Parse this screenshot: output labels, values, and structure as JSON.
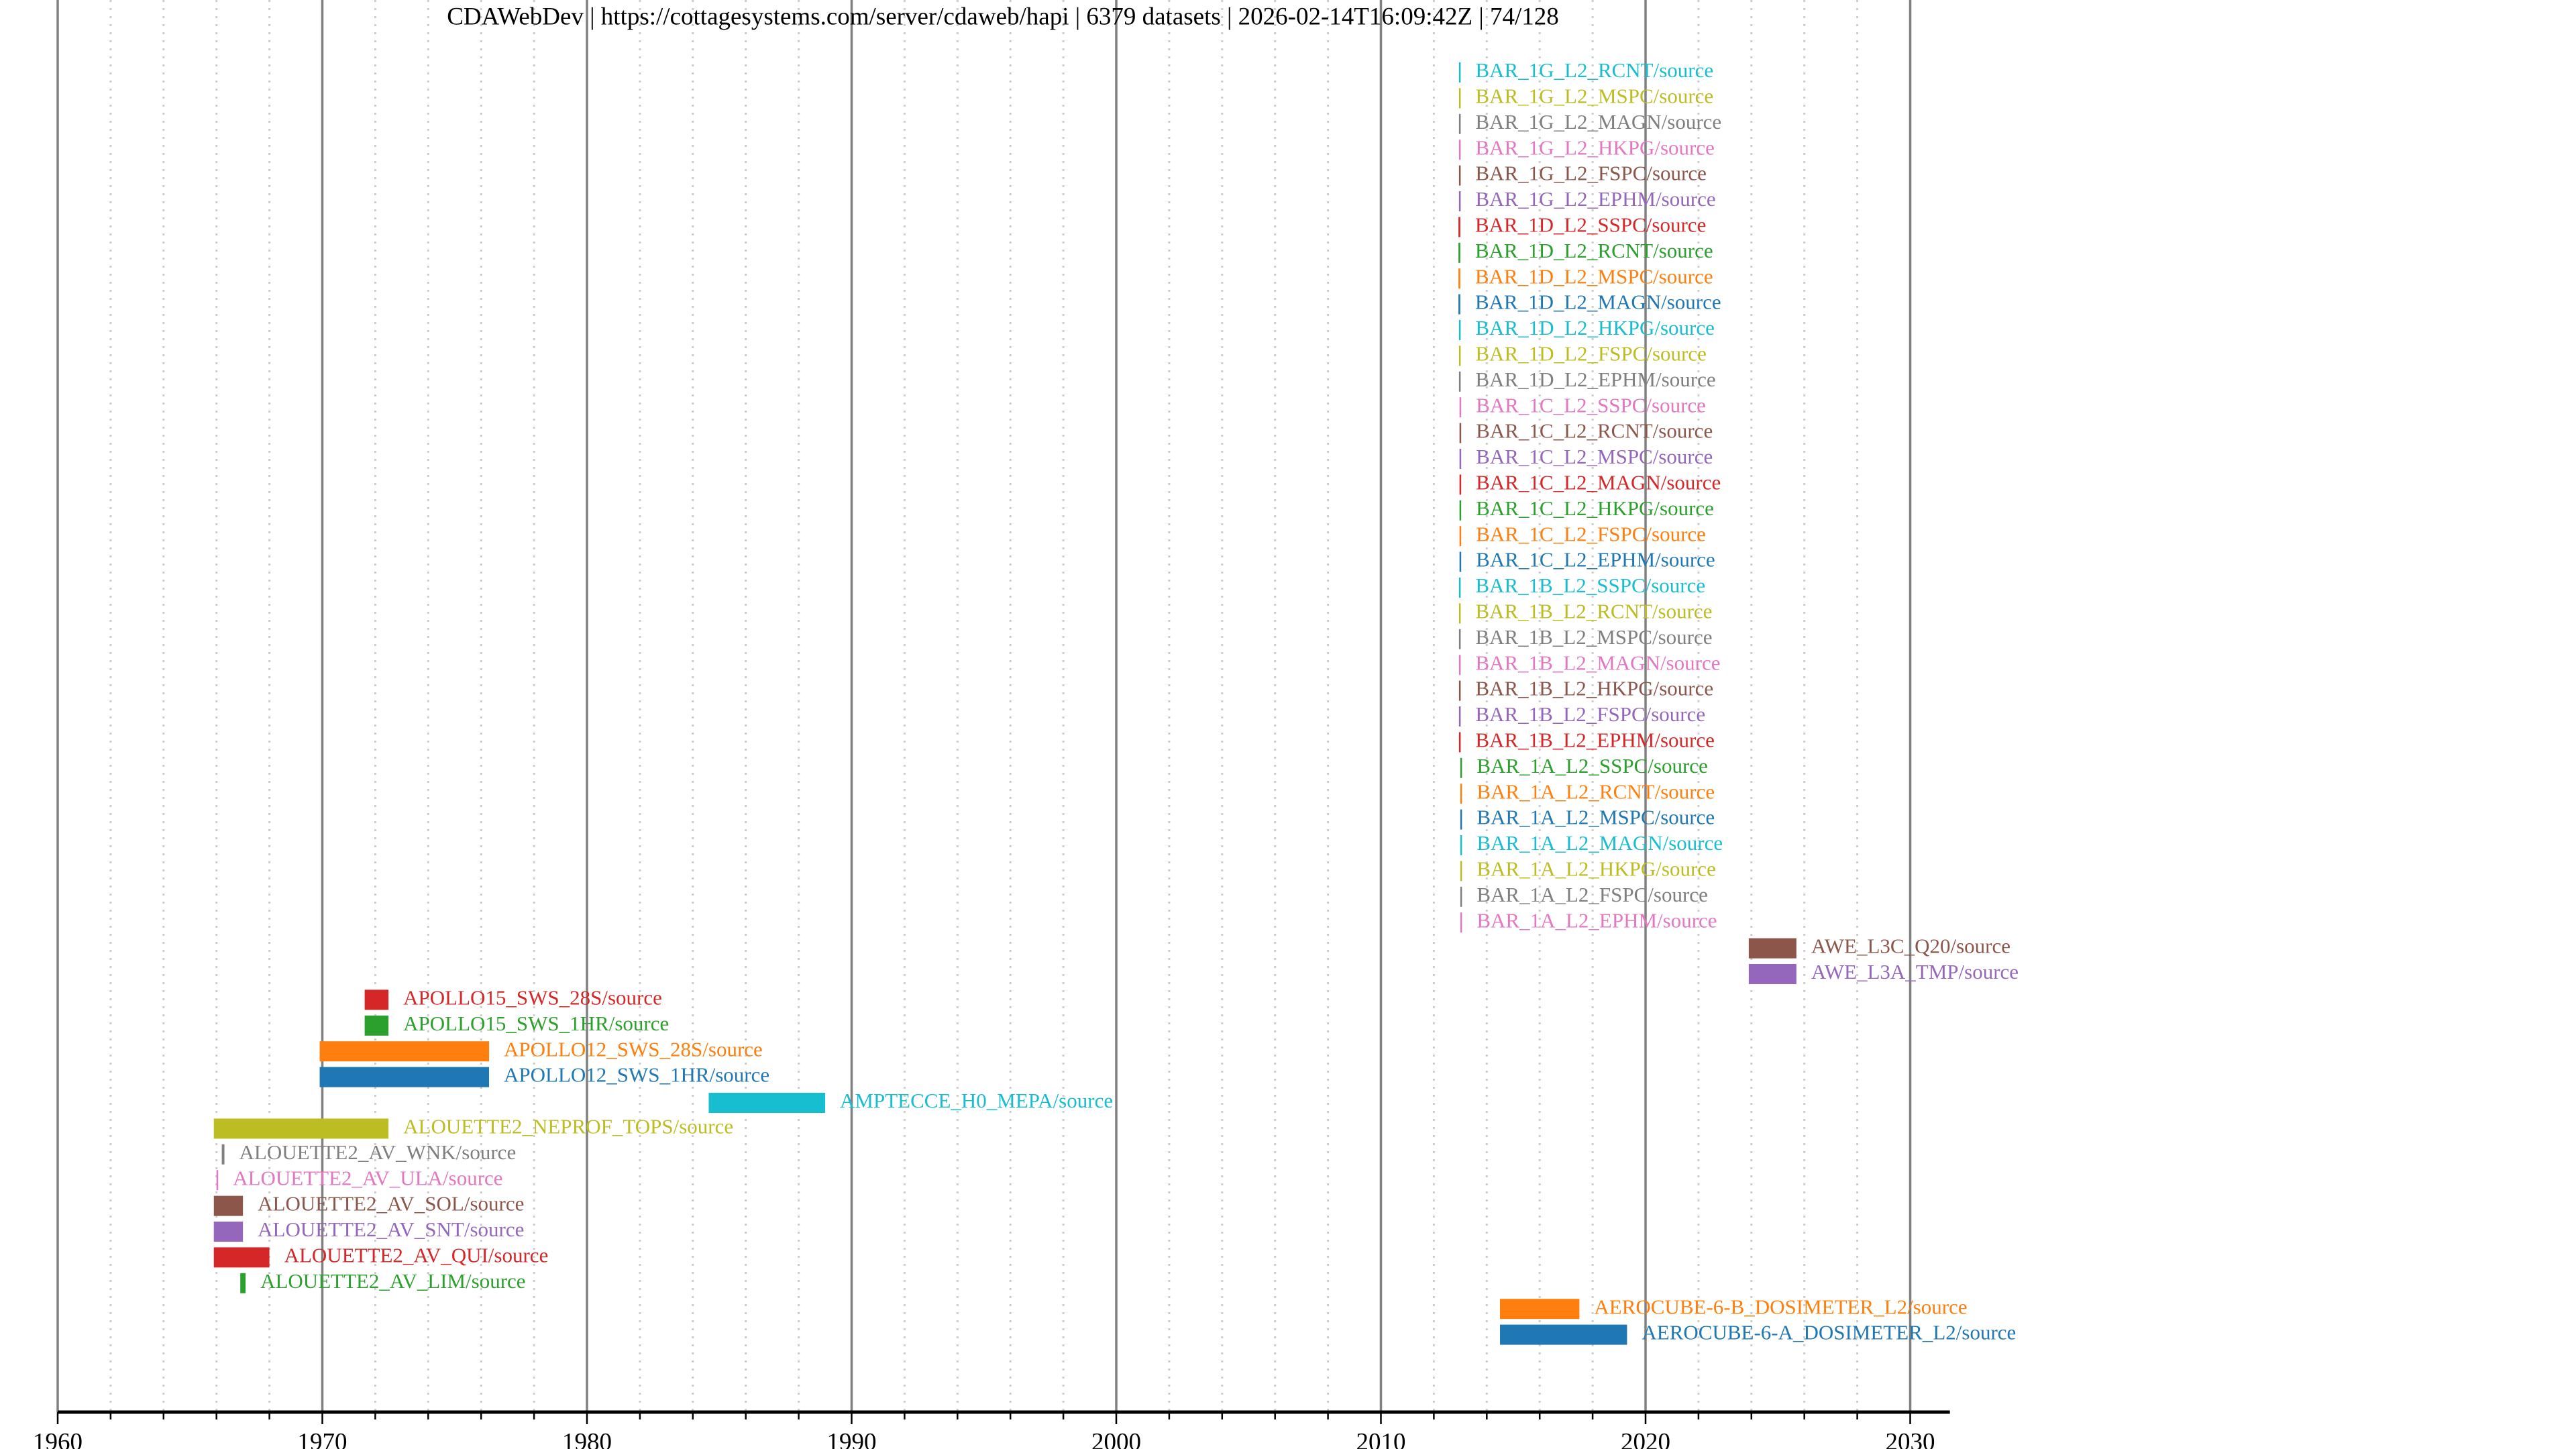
{
  "header": {
    "title_parts": [
      "CDAWebDev",
      "https://cottagesystems.com/server/cdaweb/hapi",
      "6379 datasets",
      "2026-02-14T16:09:42Z",
      "74/128"
    ],
    "separator": " | "
  },
  "chart_data": {
    "type": "timeline",
    "title": "CDAWebDev | https://cottagesystems.com/server/cdaweb/hapi | 6379 datasets | 2026-02-14T16:09:42Z | 74/128",
    "xlabel": "",
    "ylabel": "",
    "xlim": [
      1960,
      2031.5
    ],
    "x_major_ticks": [
      1960,
      1970,
      1980,
      1990,
      2000,
      2010,
      2020,
      2030
    ],
    "x_tick_labels": [
      "1960",
      "1970",
      "1980",
      "1990",
      "2000",
      "2010",
      "2020",
      "2030"
    ],
    "x_minor_step": 2,
    "grid": true,
    "palette": [
      "#1f77b4",
      "#ff7f0e",
      "#2ca02c",
      "#d62728",
      "#9467bd",
      "#8c564b",
      "#e377c2",
      "#7f7f7f",
      "#bcbd22",
      "#17becf"
    ],
    "series": [
      {
        "name": "BAR_1G_L2_RCNT/source",
        "start": 2012.95,
        "end": 2013.0,
        "color": "#17becf"
      },
      {
        "name": "BAR_1G_L2_MSPC/source",
        "start": 2012.95,
        "end": 2013.0,
        "color": "#bcbd22"
      },
      {
        "name": "BAR_1G_L2_MAGN/source",
        "start": 2012.95,
        "end": 2013.0,
        "color": "#7f7f7f"
      },
      {
        "name": "BAR_1G_L2_HKPG/source",
        "start": 2012.95,
        "end": 2013.0,
        "color": "#e377c2"
      },
      {
        "name": "BAR_1G_L2_FSPC/source",
        "start": 2012.95,
        "end": 2013.0,
        "color": "#8c564b"
      },
      {
        "name": "BAR_1G_L2_EPHM/source",
        "start": 2012.95,
        "end": 2013.0,
        "color": "#9467bd"
      },
      {
        "name": "BAR_1D_L2_SSPC/source",
        "start": 2012.93,
        "end": 2013.0,
        "color": "#d62728"
      },
      {
        "name": "BAR_1D_L2_RCNT/source",
        "start": 2012.93,
        "end": 2013.0,
        "color": "#2ca02c"
      },
      {
        "name": "BAR_1D_L2_MSPC/source",
        "start": 2012.93,
        "end": 2013.0,
        "color": "#ff7f0e"
      },
      {
        "name": "BAR_1D_L2_MAGN/source",
        "start": 2012.93,
        "end": 2013.0,
        "color": "#1f77b4"
      },
      {
        "name": "BAR_1D_L2_HKPG/source",
        "start": 2012.95,
        "end": 2013.0,
        "color": "#17becf"
      },
      {
        "name": "BAR_1D_L2_FSPC/source",
        "start": 2012.95,
        "end": 2013.0,
        "color": "#bcbd22"
      },
      {
        "name": "BAR_1D_L2_EPHM/source",
        "start": 2012.95,
        "end": 2013.0,
        "color": "#7f7f7f"
      },
      {
        "name": "BAR_1C_L2_SSPC/source",
        "start": 2012.97,
        "end": 2013.0,
        "color": "#e377c2"
      },
      {
        "name": "BAR_1C_L2_RCNT/source",
        "start": 2012.97,
        "end": 2013.0,
        "color": "#8c564b"
      },
      {
        "name": "BAR_1C_L2_MSPC/source",
        "start": 2012.97,
        "end": 2013.0,
        "color": "#9467bd"
      },
      {
        "name": "BAR_1C_L2_MAGN/source",
        "start": 2012.97,
        "end": 2013.0,
        "color": "#d62728"
      },
      {
        "name": "BAR_1C_L2_HKPG/source",
        "start": 2012.97,
        "end": 2013.0,
        "color": "#2ca02c"
      },
      {
        "name": "BAR_1C_L2_FSPC/source",
        "start": 2012.97,
        "end": 2013.0,
        "color": "#ff7f0e"
      },
      {
        "name": "BAR_1C_L2_EPHM/source",
        "start": 2012.97,
        "end": 2013.0,
        "color": "#1f77b4"
      },
      {
        "name": "BAR_1B_L2_SSPC/source",
        "start": 2012.95,
        "end": 2013.0,
        "color": "#17becf"
      },
      {
        "name": "BAR_1B_L2_RCNT/source",
        "start": 2012.95,
        "end": 2013.0,
        "color": "#bcbd22"
      },
      {
        "name": "BAR_1B_L2_MSPC/source",
        "start": 2012.95,
        "end": 2013.0,
        "color": "#7f7f7f"
      },
      {
        "name": "BAR_1B_L2_MAGN/source",
        "start": 2012.95,
        "end": 2013.0,
        "color": "#e377c2"
      },
      {
        "name": "BAR_1B_L2_HKPG/source",
        "start": 2012.95,
        "end": 2013.0,
        "color": "#8c564b"
      },
      {
        "name": "BAR_1B_L2_FSPC/source",
        "start": 2012.95,
        "end": 2013.0,
        "color": "#9467bd"
      },
      {
        "name": "BAR_1B_L2_EPHM/source",
        "start": 2012.95,
        "end": 2013.0,
        "color": "#d62728"
      },
      {
        "name": "BAR_1A_L2_SSPC/source",
        "start": 2013.0,
        "end": 2013.05,
        "color": "#2ca02c"
      },
      {
        "name": "BAR_1A_L2_RCNT/source",
        "start": 2013.0,
        "end": 2013.05,
        "color": "#ff7f0e"
      },
      {
        "name": "BAR_1A_L2_MSPC/source",
        "start": 2013.0,
        "end": 2013.05,
        "color": "#1f77b4"
      },
      {
        "name": "BAR_1A_L2_MAGN/source",
        "start": 2013.0,
        "end": 2013.05,
        "color": "#17becf"
      },
      {
        "name": "BAR_1A_L2_HKPG/source",
        "start": 2013.0,
        "end": 2013.05,
        "color": "#bcbd22"
      },
      {
        "name": "BAR_1A_L2_FSPC/source",
        "start": 2013.0,
        "end": 2013.05,
        "color": "#7f7f7f"
      },
      {
        "name": "BAR_1A_L2_EPHM/source",
        "start": 2013.0,
        "end": 2013.05,
        "color": "#e377c2"
      },
      {
        "name": "AWE_L3C_Q20/source",
        "start": 2023.9,
        "end": 2025.7,
        "color": "#8c564b"
      },
      {
        "name": "AWE_L3A_TMP/source",
        "start": 2023.9,
        "end": 2025.7,
        "color": "#9467bd"
      },
      {
        "name": "APOLLO15_SWS_28S/source",
        "start": 1971.6,
        "end": 1972.5,
        "color": "#d62728"
      },
      {
        "name": "APOLLO15_SWS_1HR/source",
        "start": 1971.6,
        "end": 1972.5,
        "color": "#2ca02c"
      },
      {
        "name": "APOLLO12_SWS_28S/source",
        "start": 1969.9,
        "end": 1976.3,
        "color": "#ff7f0e"
      },
      {
        "name": "APOLLO12_SWS_1HR/source",
        "start": 1969.9,
        "end": 1976.3,
        "color": "#1f77b4"
      },
      {
        "name": "AMPTECCE_H0_MEPA/source",
        "start": 1984.6,
        "end": 1989.0,
        "color": "#17becf"
      },
      {
        "name": "ALOUETTE2_NEPROF_TOPS/source",
        "start": 1965.9,
        "end": 1972.5,
        "color": "#bcbd22"
      },
      {
        "name": "ALOUETTE2_AV_WNK/source",
        "start": 1966.2,
        "end": 1966.3,
        "color": "#7f7f7f"
      },
      {
        "name": "ALOUETTE2_AV_ULA/source",
        "start": 1966.0,
        "end": 1966.05,
        "color": "#e377c2"
      },
      {
        "name": "ALOUETTE2_AV_SOL/source",
        "start": 1965.9,
        "end": 1967.0,
        "color": "#8c564b"
      },
      {
        "name": "ALOUETTE2_AV_SNT/source",
        "start": 1965.9,
        "end": 1967.0,
        "color": "#9467bd"
      },
      {
        "name": "ALOUETTE2_AV_QUI/source",
        "start": 1965.9,
        "end": 1968.0,
        "color": "#d62728"
      },
      {
        "name": "ALOUETTE2_AV_LIM/source",
        "start": 1966.9,
        "end": 1967.1,
        "color": "#2ca02c"
      },
      {
        "name": "AEROCUBE-6-B_DOSIMETER_L2/source",
        "start": 2014.5,
        "end": 2017.5,
        "color": "#ff7f0e"
      },
      {
        "name": "AEROCUBE-6-A_DOSIMETER_L2/source",
        "start": 2014.5,
        "end": 2019.3,
        "color": "#1f77b4"
      }
    ]
  }
}
